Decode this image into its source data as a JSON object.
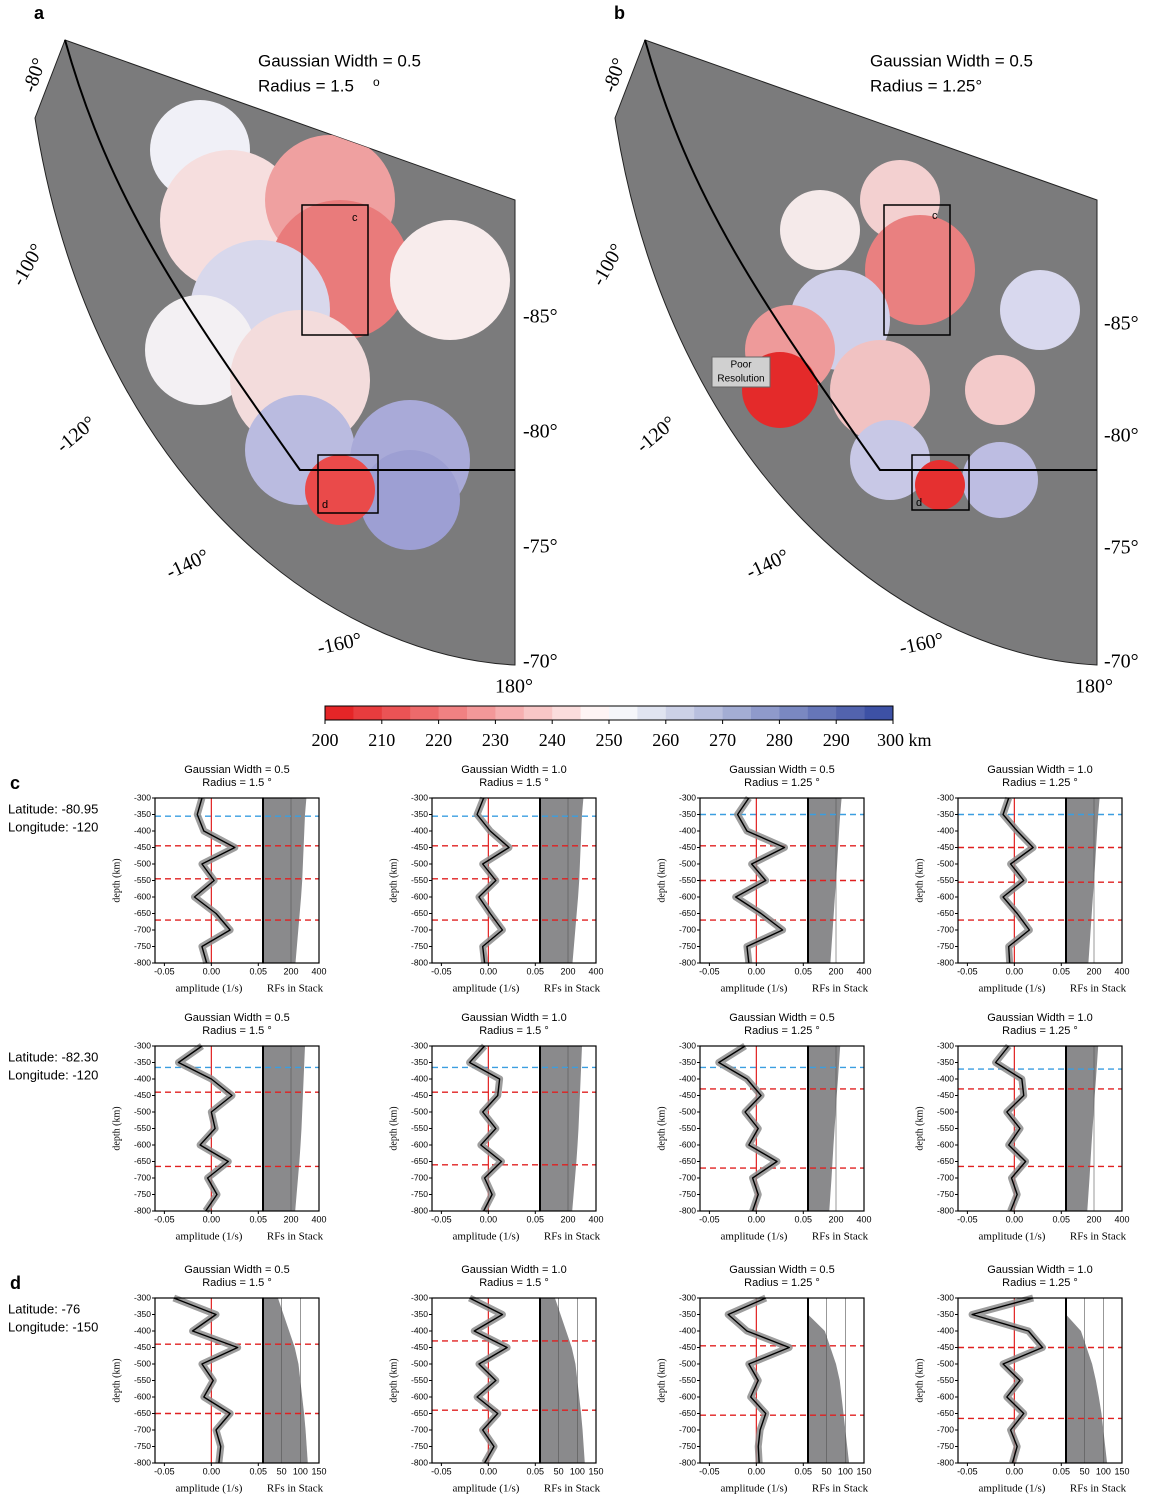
{
  "maps": [
    {
      "label": "a",
      "title": "Gaussian Width = 0.5",
      "subtitle": "Radius = 1.5",
      "degree": "o",
      "lon_labels": [
        "-80°",
        "-100°",
        "-120°",
        "-140°",
        "-160°",
        "180°"
      ],
      "lat_labels": [
        "-85°",
        "-80°",
        "-75°",
        "-70°"
      ],
      "boxes": [
        "c",
        "d"
      ]
    },
    {
      "label": "b",
      "title": "Gaussian Width = 0.5",
      "subtitle": "Radius = 1.25°",
      "lon_labels": [
        "-80°",
        "-100°",
        "-120°",
        "-140°",
        "-160°",
        "180°"
      ],
      "lat_labels": [
        "-85°",
        "-80°",
        "-75°",
        "-70°"
      ],
      "boxes": [
        "c",
        "d"
      ],
      "annotation": [
        "Poor",
        "Resolution"
      ]
    }
  ],
  "colorbar": {
    "ticks": [
      200,
      210,
      220,
      230,
      240,
      250,
      260,
      270,
      280,
      290,
      {
        "value": 300,
        "label": "300 km"
      }
    ]
  },
  "rows": [
    {
      "label": "c",
      "latitude": "Latitude: -80.95",
      "longitude": "Longitude: -120"
    },
    {
      "latitude": "Latitude: -82.30",
      "longitude": "Longitude: -120"
    },
    {
      "label": "d",
      "latitude": "Latitude: -76",
      "longitude": "Longitude: -150"
    }
  ],
  "chart_data": [
    {
      "type": "line",
      "title": "Gaussian Width = 0.5",
      "subtitle": "Radius = 1.5 °",
      "ylabel": "depth (km)",
      "xlabel": "amplitude (1/s)",
      "x2label": "RFs in Stack",
      "xlim": [
        -0.06,
        0.055
      ],
      "xticks": [
        {
          "value": -0.05,
          "label": "-0.05"
        },
        {
          "value": 0,
          "label": "0.00"
        },
        {
          "value": 0.05,
          "label": "0.05"
        }
      ],
      "x2lim": [
        0,
        400
      ],
      "x2ticks": [
        200,
        400
      ],
      "ylim": [
        -800,
        -300
      ],
      "yticks": [
        -300,
        -350,
        -400,
        -450,
        -500,
        -550,
        -600,
        -650,
        -700,
        -750,
        -800
      ],
      "depth": [
        -300,
        -350,
        -400,
        -450,
        -500,
        -550,
        -600,
        -650,
        -700,
        -750,
        -800
      ],
      "amplitude": [
        -0.01,
        -0.015,
        -0.008,
        0.025,
        -0.01,
        0.003,
        -0.018,
        0.005,
        0.02,
        -0.01,
        -0.005
      ],
      "rf_count": [
        310,
        300,
        295,
        290,
        285,
        280,
        272,
        262,
        252,
        242,
        232
      ],
      "blue_lines": [
        -355
      ],
      "red_lines": [
        -445,
        -545,
        -670
      ]
    },
    {
      "type": "line",
      "title": "Gaussian Width = 1.0",
      "subtitle": "Radius = 1.5 °",
      "ylabel": "depth (km)",
      "xlabel": "amplitude (1/s)",
      "x2label": "RFs in Stack",
      "xlim": [
        -0.06,
        0.055
      ],
      "xticks": [
        {
          "value": -0.05,
          "label": "-0.05"
        },
        {
          "value": 0,
          "label": "0.00"
        },
        {
          "value": 0.05,
          "label": "0.05"
        }
      ],
      "x2lim": [
        0,
        400
      ],
      "x2ticks": [
        200,
        400
      ],
      "ylim": [
        -800,
        -300
      ],
      "yticks": [
        -300,
        -350,
        -400,
        -450,
        -500,
        -550,
        -600,
        -650,
        -700,
        -750,
        -800
      ],
      "depth": [
        -300,
        -350,
        -400,
        -450,
        -500,
        -550,
        -600,
        -650,
        -700,
        -750,
        -800
      ],
      "amplitude": [
        -0.005,
        -0.012,
        0.002,
        0.022,
        -0.006,
        0.008,
        -0.01,
        0.002,
        0.015,
        -0.006,
        -0.004
      ],
      "rf_count": [
        310,
        300,
        295,
        290,
        285,
        280,
        272,
        262,
        252,
        242,
        232
      ],
      "blue_lines": [
        -355
      ],
      "red_lines": [
        -445,
        -545,
        -670
      ]
    },
    {
      "type": "line",
      "title": "Gaussian Width = 0.5",
      "subtitle": "Radius = 1.25 °",
      "ylabel": "depth (km)",
      "xlabel": "amplitude (1/s)",
      "x2label": "RFs in Stack",
      "xlim": [
        -0.06,
        0.055
      ],
      "xticks": [
        {
          "value": -0.05,
          "label": "-0.05"
        },
        {
          "value": 0,
          "label": "0.00"
        },
        {
          "value": 0.05,
          "label": "0.05"
        }
      ],
      "x2lim": [
        0,
        400
      ],
      "x2ticks": [
        200,
        400
      ],
      "ylim": [
        -800,
        -300
      ],
      "yticks": [
        -300,
        -350,
        -400,
        -450,
        -500,
        -550,
        -600,
        -650,
        -700,
        -750,
        -800
      ],
      "depth": [
        -300,
        -350,
        -400,
        -450,
        -500,
        -550,
        -600,
        -650,
        -700,
        -750,
        -800
      ],
      "amplitude": [
        -0.008,
        -0.02,
        -0.01,
        0.03,
        -0.005,
        0.01,
        -0.022,
        0.005,
        0.028,
        -0.01,
        -0.008
      ],
      "rf_count": [
        240,
        230,
        222,
        215,
        208,
        200,
        192,
        184,
        176,
        168,
        160
      ],
      "blue_lines": [
        -350
      ],
      "red_lines": [
        -445,
        -550,
        -670
      ]
    },
    {
      "type": "line",
      "title": "Gaussian Width = 1.0",
      "subtitle": "Radius = 1.25 °",
      "ylabel": "depth (km)",
      "xlabel": "amplitude (1/s)",
      "x2label": "RFs in Stack",
      "xlim": [
        -0.06,
        0.055
      ],
      "xticks": [
        {
          "value": -0.05,
          "label": "-0.05"
        },
        {
          "value": 0,
          "label": "0.00"
        },
        {
          "value": 0.05,
          "label": "0.05"
        }
      ],
      "x2lim": [
        0,
        400
      ],
      "x2ticks": [
        200,
        400
      ],
      "ylim": [
        -800,
        -300
      ],
      "yticks": [
        -300,
        -350,
        -400,
        -450,
        -500,
        -550,
        -600,
        -650,
        -700,
        -750,
        -800
      ],
      "depth": [
        -300,
        -350,
        -400,
        -450,
        -500,
        -550,
        -600,
        -650,
        -700,
        -750,
        -800
      ],
      "amplitude": [
        -0.006,
        -0.012,
        0.003,
        0.02,
        -0.004,
        0.01,
        -0.012,
        0.003,
        0.016,
        -0.006,
        -0.005
      ],
      "rf_count": [
        240,
        230,
        222,
        215,
        208,
        200,
        192,
        184,
        176,
        168,
        160
      ],
      "blue_lines": [
        -350
      ],
      "red_lines": [
        -450,
        -555,
        -670
      ]
    },
    {
      "type": "line",
      "title": "Gaussian Width = 0.5",
      "subtitle": "Radius = 1.5 °",
      "ylabel": "depth (km)",
      "xlabel": "amplitude (1/s)",
      "x2label": "RFs in Stack",
      "xlim": [
        -0.06,
        0.055
      ],
      "xticks": [
        {
          "value": -0.05,
          "label": "-0.05"
        },
        {
          "value": 0,
          "label": "0.00"
        },
        {
          "value": 0.05,
          "label": "0.05"
        }
      ],
      "x2lim": [
        0,
        400
      ],
      "x2ticks": [
        200,
        400
      ],
      "ylim": [
        -800,
        -300
      ],
      "yticks": [
        -300,
        -350,
        -400,
        -450,
        -500,
        -550,
        -600,
        -650,
        -700,
        -750,
        -800
      ],
      "depth": [
        -300,
        -350,
        -400,
        -450,
        -500,
        -550,
        -600,
        -650,
        -700,
        -750,
        -800
      ],
      "amplitude": [
        -0.01,
        -0.035,
        0.0,
        0.022,
        0.0,
        0.004,
        -0.012,
        0.018,
        -0.004,
        0.006,
        -0.006
      ],
      "rf_count": [
        300,
        295,
        290,
        285,
        280,
        275,
        268,
        260,
        250,
        240,
        230
      ],
      "blue_lines": [
        -365
      ],
      "red_lines": [
        -440,
        -665
      ]
    },
    {
      "type": "line",
      "title": "Gaussian Width = 1.0",
      "subtitle": "Radius = 1.5 °",
      "ylabel": "depth (km)",
      "xlabel": "amplitude (1/s)",
      "x2label": "RFs in Stack",
      "xlim": [
        -0.06,
        0.055
      ],
      "xticks": [
        {
          "value": -0.05,
          "label": "-0.05"
        },
        {
          "value": 0,
          "label": "0.00"
        },
        {
          "value": 0.05,
          "label": "0.05"
        }
      ],
      "x2lim": [
        0,
        400
      ],
      "x2ticks": [
        200,
        400
      ],
      "ylim": [
        -800,
        -300
      ],
      "yticks": [
        -300,
        -350,
        -400,
        -450,
        -500,
        -550,
        -600,
        -650,
        -700,
        -750,
        -800
      ],
      "depth": [
        -300,
        -350,
        -400,
        -450,
        -500,
        -550,
        -600,
        -650,
        -700,
        -750,
        -800
      ],
      "amplitude": [
        -0.004,
        -0.02,
        0.012,
        0.01,
        -0.006,
        0.008,
        -0.008,
        0.014,
        -0.004,
        0.004,
        -0.005
      ],
      "rf_count": [
        300,
        295,
        290,
        285,
        280,
        275,
        268,
        260,
        250,
        240,
        230
      ],
      "blue_lines": [
        -365
      ],
      "red_lines": [
        -440,
        -660
      ]
    },
    {
      "type": "line",
      "title": "Gaussian Width = 0.5",
      "subtitle": "Radius = 1.25 °",
      "ylabel": "depth (km)",
      "xlabel": "amplitude (1/s)",
      "x2label": "RFs in Stack",
      "xlim": [
        -0.06,
        0.055
      ],
      "xticks": [
        {
          "value": -0.05,
          "label": "-0.05"
        },
        {
          "value": 0,
          "label": "0.00"
        },
        {
          "value": 0.05,
          "label": "0.05"
        }
      ],
      "x2lim": [
        0,
        400
      ],
      "x2ticks": [
        200,
        400
      ],
      "ylim": [
        -800,
        -300
      ],
      "yticks": [
        -300,
        -350,
        -400,
        -450,
        -500,
        -550,
        -600,
        -650,
        -700,
        -750,
        -800
      ],
      "depth": [
        -300,
        -350,
        -400,
        -450,
        -500,
        -550,
        -600,
        -650,
        -700,
        -750,
        -800
      ],
      "amplitude": [
        -0.012,
        -0.04,
        -0.01,
        0.005,
        -0.012,
        0.002,
        -0.008,
        0.022,
        -0.004,
        0.002,
        -0.004
      ],
      "rf_count": [
        230,
        222,
        214,
        205,
        198,
        190,
        182,
        175,
        168,
        160,
        152
      ],
      "blue_lines": [
        -365
      ],
      "red_lines": [
        -430,
        -670
      ]
    },
    {
      "type": "line",
      "title": "Gaussian Width = 1.0",
      "subtitle": "Radius = 1.25 °",
      "ylabel": "depth (km)",
      "xlabel": "amplitude (1/s)",
      "x2label": "RFs in Stack",
      "xlim": [
        -0.06,
        0.055
      ],
      "xticks": [
        {
          "value": -0.05,
          "label": "-0.05"
        },
        {
          "value": 0,
          "label": "0.00"
        },
        {
          "value": 0.05,
          "label": "0.05"
        }
      ],
      "x2lim": [
        0,
        400
      ],
      "x2ticks": [
        200,
        400
      ],
      "ylim": [
        -800,
        -300
      ],
      "yticks": [
        -300,
        -350,
        -400,
        -450,
        -500,
        -550,
        -600,
        -650,
        -700,
        -750,
        -800
      ],
      "depth": [
        -300,
        -350,
        -400,
        -450,
        -500,
        -550,
        -600,
        -650,
        -700,
        -750,
        -800
      ],
      "amplitude": [
        -0.006,
        -0.02,
        0.008,
        0.01,
        -0.008,
        0.006,
        -0.006,
        0.012,
        -0.003,
        0.003,
        -0.004
      ],
      "rf_count": [
        230,
        222,
        214,
        205,
        198,
        190,
        182,
        175,
        168,
        160,
        152
      ],
      "blue_lines": [
        -370
      ],
      "red_lines": [
        -430,
        -665
      ]
    },
    {
      "type": "line",
      "title": "Gaussian Width = 0.5",
      "subtitle": "Radius = 1.5 °",
      "ylabel": "depth (km)",
      "xlabel": "amplitude (1/s)",
      "x2label": "RFs in Stack",
      "xlim": [
        -0.06,
        0.055
      ],
      "xticks": [
        {
          "value": -0.05,
          "label": "-0.05"
        },
        {
          "value": 0,
          "label": "0.00"
        },
        {
          "value": 0.05,
          "label": "0.05"
        }
      ],
      "x2lim": [
        0,
        150
      ],
      "x2ticks": [
        50,
        100,
        150
      ],
      "ylim": [
        -800,
        -300
      ],
      "yticks": [
        -300,
        -350,
        -400,
        -450,
        -500,
        -550,
        -600,
        -650,
        -700,
        -750,
        -800
      ],
      "depth": [
        -300,
        -350,
        -400,
        -450,
        -500,
        -550,
        -600,
        -650,
        -700,
        -750,
        -800
      ],
      "amplitude": [
        -0.04,
        0.005,
        -0.02,
        0.028,
        -0.01,
        0.002,
        -0.008,
        0.02,
        0.005,
        0.01,
        0.008
      ],
      "rf_count": [
        40,
        55,
        70,
        85,
        95,
        100,
        105,
        110,
        114,
        117,
        120
      ],
      "blue_lines": [],
      "red_lines": [
        -440,
        -650
      ]
    },
    {
      "type": "line",
      "title": "Gaussian Width = 1.0",
      "subtitle": "Radius = 1.5 °",
      "ylabel": "depth (km)",
      "xlabel": "amplitude (1/s)",
      "x2label": "RFs in Stack",
      "xlim": [
        -0.06,
        0.055
      ],
      "xticks": [
        {
          "value": -0.05,
          "label": "-0.05"
        },
        {
          "value": 0,
          "label": "0.00"
        },
        {
          "value": 0.05,
          "label": "0.05"
        }
      ],
      "x2lim": [
        0,
        150
      ],
      "x2ticks": [
        50,
        100,
        150
      ],
      "ylim": [
        -800,
        -300
      ],
      "yticks": [
        -300,
        -350,
        -400,
        -450,
        -500,
        -550,
        -600,
        -650,
        -700,
        -750,
        -800
      ],
      "depth": [
        -300,
        -350,
        -400,
        -450,
        -500,
        -550,
        -600,
        -650,
        -700,
        -750,
        -800
      ],
      "amplitude": [
        -0.02,
        0.015,
        -0.015,
        0.02,
        -0.01,
        0.008,
        -0.012,
        0.01,
        -0.006,
        0.006,
        -0.004
      ],
      "rf_count": [
        40,
        55,
        70,
        85,
        95,
        100,
        105,
        110,
        114,
        117,
        120
      ],
      "blue_lines": [],
      "red_lines": [
        -430,
        -640
      ]
    },
    {
      "type": "line",
      "title": "Gaussian Width = 0.5",
      "subtitle": "Radius = 1.25 °",
      "ylabel": "depth (km)",
      "xlabel": "amplitude (1/s)",
      "x2label": "RFs in Stack",
      "xlim": [
        -0.06,
        0.055
      ],
      "xticks": [
        {
          "value": -0.05,
          "label": "-0.05"
        },
        {
          "value": 0,
          "label": "0.00"
        },
        {
          "value": 0.05,
          "label": "0.05"
        }
      ],
      "x2lim": [
        0,
        150
      ],
      "x2ticks": [
        50,
        100,
        150
      ],
      "ylim": [
        -800,
        -300
      ],
      "yticks": [
        -300,
        -350,
        -400,
        -450,
        -500,
        -550,
        -600,
        -650,
        -700,
        -750,
        -800
      ],
      "depth": [
        -300,
        -350,
        -400,
        -450,
        -500,
        -550,
        -600,
        -650,
        -700,
        -750,
        -800
      ],
      "amplitude": [
        0.01,
        -0.03,
        -0.01,
        0.035,
        -0.008,
        0.002,
        -0.006,
        0.01,
        0.004,
        0.002,
        0.003
      ],
      "rf_count": [
        0,
        0,
        45,
        60,
        75,
        85,
        90,
        95,
        100,
        105,
        110
      ],
      "blue_lines": [],
      "red_lines": [
        -445,
        -655
      ]
    },
    {
      "type": "line",
      "title": "Gaussian Width = 1.0",
      "subtitle": "Radius = 1.25 °",
      "ylabel": "depth (km)",
      "xlabel": "amplitude (1/s)",
      "x2label": "RFs in Stack",
      "xlim": [
        -0.06,
        0.055
      ],
      "xticks": [
        {
          "value": -0.05,
          "label": "-0.05"
        },
        {
          "value": 0,
          "label": "0.00"
        },
        {
          "value": 0.05,
          "label": "0.05"
        }
      ],
      "x2lim": [
        0,
        150
      ],
      "x2ticks": [
        50,
        100,
        150
      ],
      "ylim": [
        -800,
        -300
      ],
      "yticks": [
        -300,
        -350,
        -400,
        -450,
        -500,
        -550,
        -600,
        -650,
        -700,
        -750,
        -800
      ],
      "depth": [
        -300,
        -350,
        -400,
        -450,
        -500,
        -550,
        -600,
        -650,
        -700,
        -750,
        -800
      ],
      "amplitude": [
        0.02,
        -0.045,
        0.015,
        0.03,
        -0.012,
        0.006,
        -0.008,
        0.01,
        -0.004,
        0.003,
        -0.002
      ],
      "rf_count": [
        0,
        0,
        40,
        55,
        70,
        80,
        88,
        95,
        100,
        105,
        110
      ],
      "blue_lines": [],
      "red_lines": [
        -450,
        -665
      ]
    }
  ]
}
